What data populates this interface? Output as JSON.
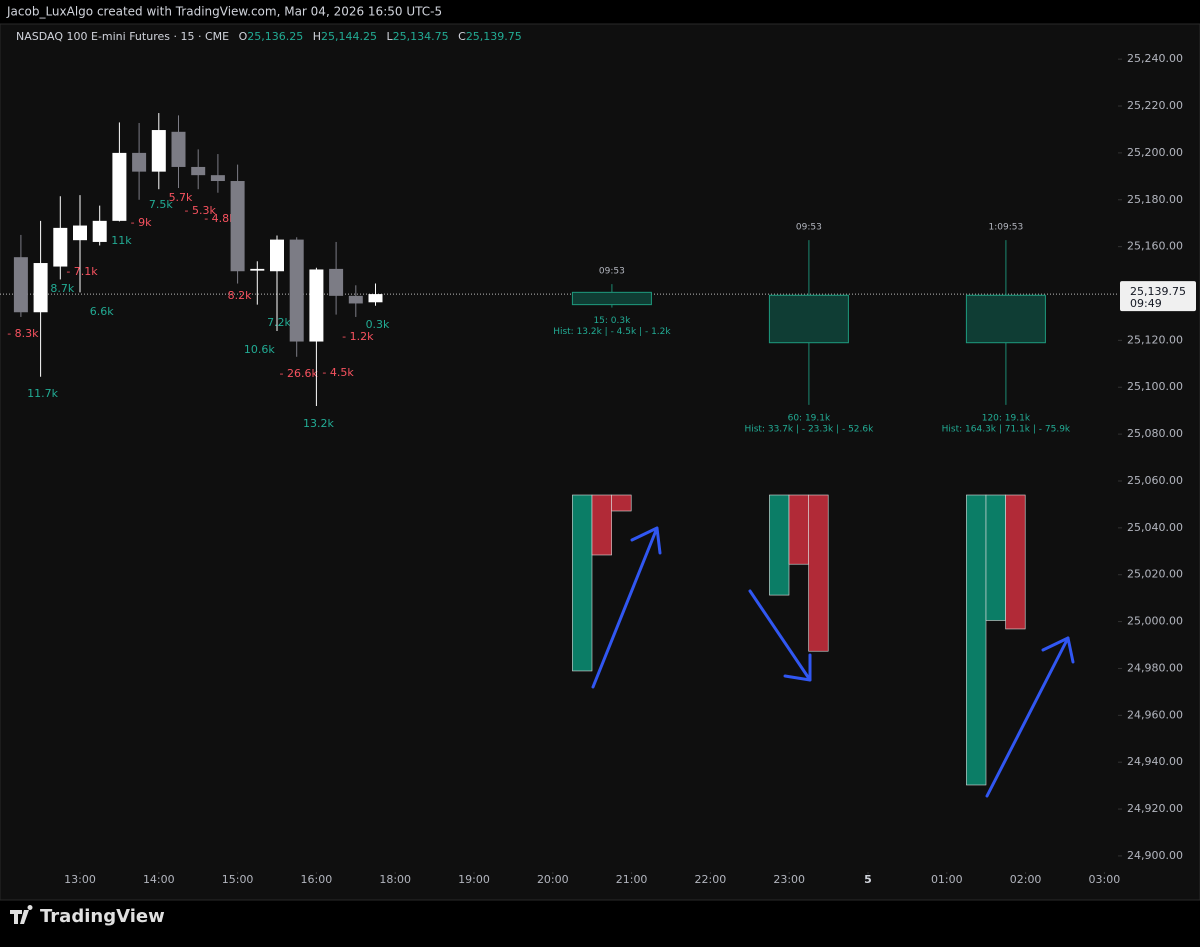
{
  "chart_data": {
    "type": "candlestick",
    "credit": "Jacob_LuxAlgo created with TradingView.com, Mar 04, 2026 16:50 UTC-5",
    "symbol": "NASDAQ 100 E-mini Futures · 15 · CME",
    "ohlc_names": [
      "O",
      "H",
      "L",
      "C"
    ],
    "ohlc_values": [
      "25,136.25",
      "25,144.25",
      "25,134.75",
      "25,139.75"
    ],
    "x": [
      "12:15",
      "12:30",
      "12:45",
      "13:00",
      "13:15",
      "13:30",
      "13:45",
      "14:00",
      "14:15",
      "14:30",
      "14:45",
      "15:00",
      "15:15",
      "15:30",
      "15:45",
      "16:00",
      "16:15",
      "16:30",
      "16:45"
    ],
    "open": [
      25155.5,
      25132,
      25151.5,
      25162.75,
      25162,
      25171,
      25200,
      25192,
      25209,
      25194,
      25190.5,
      25188,
      25149.75,
      25149.5,
      25163,
      25119.5,
      25150.5,
      25139,
      25136.25
    ],
    "high": [
      25165,
      25171,
      25181.5,
      25182,
      25177.5,
      25213,
      25212.75,
      25217,
      25216,
      25201.5,
      25199.5,
      25195,
      25153.75,
      25164.75,
      25164,
      25151,
      25162,
      25143.5,
      25144.25
    ],
    "low": [
      25130,
      25104.5,
      25146,
      25140.5,
      25160.5,
      25170.75,
      25180,
      25184.5,
      25185,
      25184.5,
      25183,
      25144.25,
      25135.25,
      25124,
      25113,
      25092,
      25131,
      25130,
      25134.75
    ],
    "close": [
      25132,
      25153,
      25168,
      25169,
      25171,
      25200,
      25192,
      25209.75,
      25194,
      25190.5,
      25188,
      25149.5,
      25150.5,
      25163,
      25119.5,
      25150.25,
      25139,
      25135.75,
      25139.75
    ],
    "up_color": "#ffffff",
    "down_color": "#7c7c85",
    "volume_labels": [
      "- 8.3k",
      "11.7k",
      "8.7k",
      "- 7.1k",
      "6.6k",
      "11k",
      "- 9k",
      "7.5k",
      "5.7k",
      "- 5.3k",
      "- 4.8k",
      "8.2k",
      "10.6k",
      "7.2k",
      "- 26.6k",
      "13.2k",
      "- 4.5k",
      "- 1.2k",
      "0.3k"
    ],
    "volume_label_colors": [
      "#f7525f",
      "#22ab94",
      "#22ab94",
      "#f7525f",
      "#22ab94",
      "#22ab94",
      "#f7525f",
      "#22ab94",
      "#f7525f",
      "#f7525f",
      "#f7525f",
      "#f7525f",
      "#22ab94",
      "#22ab94",
      "#f7525f",
      "#22ab94",
      "#f7525f",
      "#f7525f",
      "#22ab94"
    ],
    "ylim": [
      24894,
      25255
    ],
    "yticks": [
      {
        "value": 25240,
        "label": "25,240.00"
      },
      {
        "value": 25220,
        "label": "25,220.00"
      },
      {
        "value": 25200,
        "label": "25,200.00"
      },
      {
        "value": 25180,
        "label": "25,180.00"
      },
      {
        "value": 25160,
        "label": "25,160.00"
      },
      {
        "value": 25120,
        "label": "25,120.00"
      },
      {
        "value": 25100,
        "label": "25,100.00"
      },
      {
        "value": 25080,
        "label": "25,080.00"
      },
      {
        "value": 25060,
        "label": "25,060.00"
      },
      {
        "value": 25040,
        "label": "25,040.00"
      },
      {
        "value": 25020,
        "label": "25,020.00"
      },
      {
        "value": 25000,
        "label": "25,000.00"
      },
      {
        "value": 24980,
        "label": "24,980.00"
      },
      {
        "value": 24960,
        "label": "24,960.00"
      },
      {
        "value": 24940,
        "label": "24,940.00"
      },
      {
        "value": 24920,
        "label": "24,920.00"
      },
      {
        "value": 24900,
        "label": "24,900.00"
      }
    ],
    "xticks": [
      "13:00",
      "14:00",
      "15:00",
      "16:00",
      "18:00",
      "19:00",
      "20:00",
      "21:00",
      "22:00",
      "23:00",
      {
        "value": "00:00",
        "label": "5"
      },
      "01:00",
      "02:00",
      "03:00"
    ],
    "last_price": 25139.75,
    "last_price_label": "25,139.75",
    "countdown": "09:49",
    "forecasts": [
      {
        "x": "20:45",
        "countdown": "09:53",
        "top": 25140.5,
        "bottom": 25135.25,
        "high": 25144,
        "low": 25134,
        "summary": "15:  0.3k",
        "hist_label": "Hist:  13.2k | - 4.5k | - 1.2k",
        "hist": [
          13.2,
          -4.5,
          -1.2
        ]
      },
      {
        "x": "23:15",
        "countdown": "09:53",
        "top": 25139.25,
        "bottom": 25119,
        "high": 25162.75,
        "low": 25092.5,
        "summary": "60:  19.1k",
        "hist_label": "Hist:  33.7k | - 23.3k | - 52.6k",
        "hist": [
          33.7,
          -23.3,
          -52.6
        ]
      },
      {
        "x": "01:45",
        "countdown": "1:09:53",
        "top": 25139.25,
        "bottom": 25119,
        "high": 25162.75,
        "low": 25092.5,
        "summary": "120:  19.1k",
        "hist_label": "Hist:  164.3k | 71.1k | - 75.9k",
        "hist": [
          164.3,
          71.1,
          -75.9
        ]
      }
    ],
    "hist_up_color": "#0b7d66",
    "hist_down_color": "#b12a37",
    "brand": "TradingView"
  }
}
